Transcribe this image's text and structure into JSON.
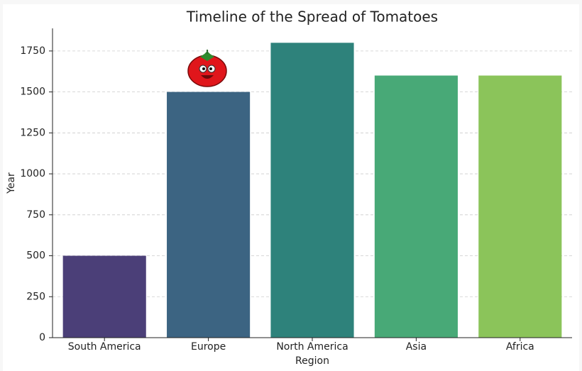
{
  "chart_data": {
    "type": "bar",
    "title": "Timeline of the Spread of Tomatoes",
    "x_label": "Region",
    "y_label": "Year",
    "categories": [
      "South America",
      "Europe",
      "North America",
      "Asia",
      "Africa"
    ],
    "values": [
      500,
      1500,
      1800,
      1600,
      1600
    ],
    "colors": [
      "#4b3f78",
      "#3c6482",
      "#2e827b",
      "#48a977",
      "#8bc45a"
    ],
    "ylim": [
      0,
      1888
    ],
    "yticks": [
      0,
      250,
      500,
      750,
      1000,
      1250,
      1500,
      1750
    ],
    "grid": true
  }
}
